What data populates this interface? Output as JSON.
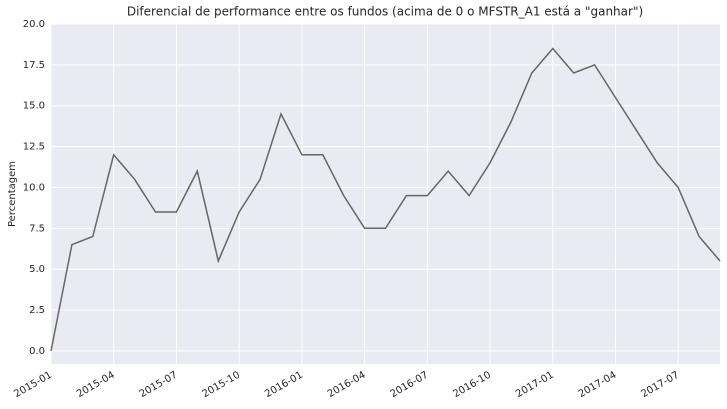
{
  "chart_data": {
    "type": "line",
    "title": "Diferencial de performance entre os fundos (acima de 0 o MFSTR_A1 está a \"ganhar\")",
    "y_label": "Percentagem",
    "x": [
      "2015-01",
      "2015-02",
      "2015-03",
      "2015-04",
      "2015-05",
      "2015-06",
      "2015-07",
      "2015-08",
      "2015-09",
      "2015-10",
      "2015-11",
      "2015-12",
      "2016-01",
      "2016-02",
      "2016-03",
      "2016-04",
      "2016-05",
      "2016-06",
      "2016-07",
      "2016-08",
      "2016-09",
      "2016-10",
      "2016-11",
      "2016-12",
      "2017-01",
      "2017-02",
      "2017-03",
      "2017-04",
      "2017-05",
      "2017-06",
      "2017-07",
      "2017-08",
      "2017-09"
    ],
    "values": [
      0,
      6.5,
      7.0,
      12,
      10.5,
      8.5,
      8.5,
      11,
      5.5,
      8.5,
      10.5,
      14.5,
      12,
      12,
      9.5,
      7.5,
      7.5,
      9.5,
      9.5,
      11,
      9.5,
      11.5,
      14,
      17,
      18.5,
      17,
      17.5,
      15.5,
      13.5,
      11.5,
      10,
      7,
      5.5
    ],
    "color": "#666666",
    "xlim": [
      "2015-01",
      "2017-09"
    ],
    "xticks": [
      "2015-01",
      "2015-04",
      "2015-07",
      "2015-10",
      "2016-01",
      "2016-04",
      "2016-07",
      "2016-10",
      "2017-01",
      "2017-04",
      "2017-07"
    ],
    "ylim": [
      -0.8,
      20
    ],
    "yticks": [
      {
        "value": 0,
        "label": "0.0"
      },
      2.5,
      {
        "value": 5,
        "label": "5.0"
      },
      7.5,
      {
        "value": 10,
        "label": "10.0"
      },
      12.5,
      {
        "value": 15,
        "label": "15.0"
      },
      17.5,
      {
        "value": 20,
        "label": "20.0"
      }
    ],
    "grid": true
  }
}
